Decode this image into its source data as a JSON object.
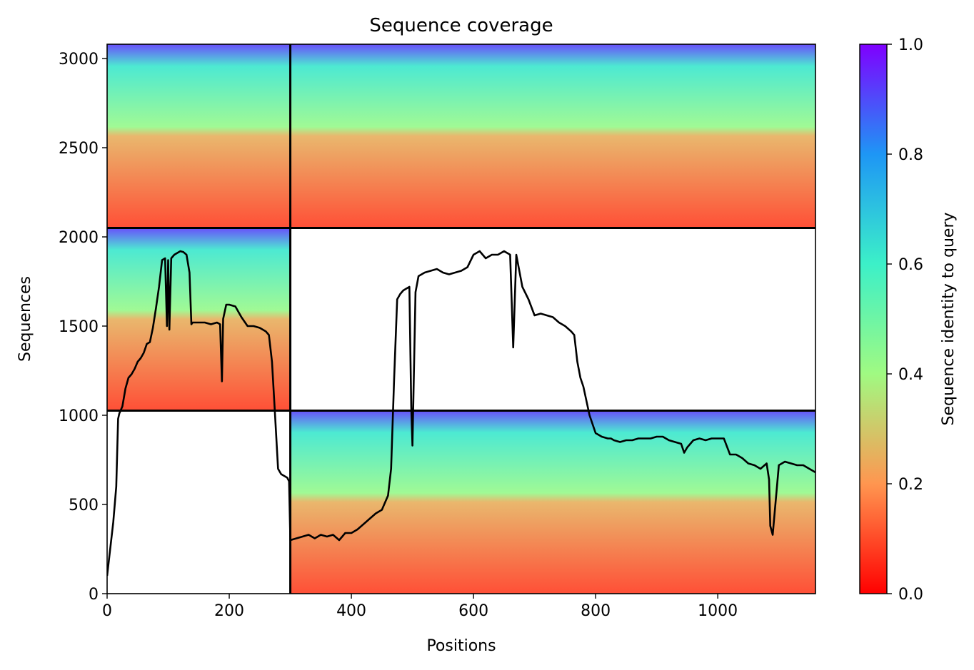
{
  "chart_data": {
    "type": "heatmap",
    "title": "Sequence coverage",
    "xlabel": "Positions",
    "ylabel": "Sequences",
    "xlim": [
      0,
      1160
    ],
    "ylim": [
      0,
      3080
    ],
    "xticks": [
      0,
      200,
      400,
      600,
      800,
      1000
    ],
    "yticks": [
      0,
      500,
      1000,
      1500,
      2000,
      2500,
      3000
    ],
    "grid": false,
    "colorbar": {
      "label": "Sequence identity to query",
      "range": [
        0.0,
        1.0
      ],
      "ticks": [
        "0.0",
        "0.2",
        "0.4",
        "0.6",
        "0.8",
        "1.0"
      ],
      "colormap": "rainbow_r",
      "low_color": "#ff0000",
      "high_color": "#7f00ff"
    },
    "chain_boundaries": {
      "x": [
        300
      ],
      "y": [
        1026,
        2050
      ]
    },
    "coverage_blocks": [
      {
        "x0": 0,
        "x1": 300,
        "y0": 2050,
        "y1": 3080,
        "identity_top": 0.9,
        "identity_bottom": 0.1
      },
      {
        "x0": 300,
        "x1": 1160,
        "y0": 2050,
        "y1": 3080,
        "identity_top": 0.9,
        "identity_bottom": 0.1
      },
      {
        "x0": 0,
        "x1": 300,
        "y0": 1026,
        "y1": 2050,
        "identity_top": 0.9,
        "identity_bottom": 0.1
      },
      {
        "x0": 300,
        "x1": 1160,
        "y0": 0,
        "y1": 1026,
        "identity_top": 0.9,
        "identity_bottom": 0.1
      }
    ],
    "series": [
      {
        "x": [
          0,
          5,
          10,
          15,
          18,
          20,
          25,
          30,
          35,
          40,
          45,
          50,
          55,
          60,
          65,
          70,
          75,
          80,
          85,
          90,
          95,
          98,
          100,
          102,
          105,
          110,
          115,
          120,
          125,
          130,
          135,
          138,
          140,
          150,
          160,
          170,
          180,
          185,
          188,
          190,
          195,
          200,
          210,
          220,
          230,
          240,
          250,
          260,
          265,
          270,
          275,
          280,
          285,
          290,
          295,
          298,
          300,
          310,
          320,
          330,
          340,
          350,
          360,
          370,
          380,
          390,
          400,
          410,
          420,
          430,
          440,
          450,
          460,
          465,
          470,
          475,
          480,
          485,
          490,
          495,
          498,
          500,
          505,
          510,
          520,
          530,
          540,
          550,
          560,
          570,
          580,
          590,
          600,
          610,
          620,
          630,
          640,
          650,
          660,
          665,
          670,
          680,
          690,
          700,
          710,
          720,
          730,
          740,
          750,
          760,
          765,
          770,
          775,
          780,
          790,
          800,
          810,
          820,
          825,
          830,
          840,
          850,
          860,
          870,
          880,
          890,
          900,
          910,
          920,
          930,
          940,
          945,
          950,
          960,
          970,
          980,
          990,
          1000,
          1010,
          1020,
          1030,
          1040,
          1050,
          1060,
          1070,
          1080,
          1084,
          1086,
          1090,
          1100,
          1110,
          1120,
          1130,
          1140,
          1150,
          1160
        ],
        "y": [
          100,
          250,
          400,
          600,
          980,
          1010,
          1050,
          1150,
          1210,
          1230,
          1260,
          1300,
          1320,
          1350,
          1400,
          1410,
          1490,
          1600,
          1720,
          1870,
          1880,
          1500,
          1870,
          1480,
          1880,
          1900,
          1910,
          1920,
          1915,
          1900,
          1800,
          1510,
          1520,
          1520,
          1520,
          1510,
          1520,
          1510,
          1190,
          1540,
          1620,
          1620,
          1610,
          1550,
          1500,
          1500,
          1490,
          1470,
          1450,
          1300,
          1000,
          700,
          670,
          660,
          650,
          630,
          300,
          310,
          320,
          330,
          310,
          330,
          320,
          330,
          300,
          340,
          340,
          360,
          390,
          420,
          450,
          470,
          550,
          700,
          1200,
          1650,
          1680,
          1700,
          1710,
          1720,
          1050,
          830,
          1690,
          1780,
          1800,
          1810,
          1820,
          1800,
          1790,
          1800,
          1810,
          1830,
          1900,
          1920,
          1880,
          1900,
          1900,
          1920,
          1900,
          1380,
          1900,
          1720,
          1650,
          1560,
          1570,
          1560,
          1550,
          1520,
          1500,
          1470,
          1450,
          1300,
          1210,
          1160,
          1000,
          900,
          880,
          870,
          870,
          860,
          850,
          860,
          860,
          870,
          870,
          870,
          880,
          880,
          860,
          850,
          840,
          790,
          820,
          860,
          870,
          860,
          870,
          870,
          870,
          780,
          780,
          760,
          730,
          720,
          700,
          730,
          640,
          380,
          330,
          720,
          740,
          730,
          720,
          720,
          700,
          680
        ]
      }
    ]
  }
}
